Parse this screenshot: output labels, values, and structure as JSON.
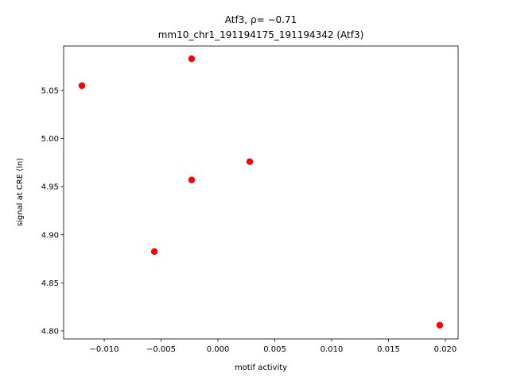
{
  "chart_data": {
    "type": "scatter",
    "title": "Atf3, ρ= −0.71",
    "subtitle": "mm10_chr1_191194175_191194342 (Atf3)",
    "x_label": "motif activity",
    "y_label": "signal at CRE (ln)",
    "color": "#ff0000",
    "series": [
      {
        "x": [
          -0.00231,
          -0.01196,
          0.0028,
          -0.00231,
          -0.00559,
          0.01951
        ],
        "values": [
          5.083,
          5.055,
          4.976,
          4.957,
          4.8825,
          4.806
        ]
      }
    ],
    "xlim": [
      -0.01357,
      0.02112
    ],
    "ylim": [
      4.7917,
      5.0962
    ],
    "xticks": [
      {
        "value": -0.01,
        "label": "−0.010"
      },
      {
        "value": -0.005,
        "label": "−0.005"
      },
      {
        "value": 0,
        "label": "0.000"
      },
      0.005,
      {
        "value": 0.01,
        "label": "0.010"
      },
      0.015,
      {
        "value": 0.02,
        "label": "0.020"
      }
    ],
    "yticks": [
      {
        "value": 4.8,
        "label": "4.80"
      },
      4.85,
      {
        "value": 4.9,
        "label": "4.90"
      },
      4.95,
      {
        "value": 5.0,
        "label": "5.00"
      },
      5.05
    ]
  }
}
